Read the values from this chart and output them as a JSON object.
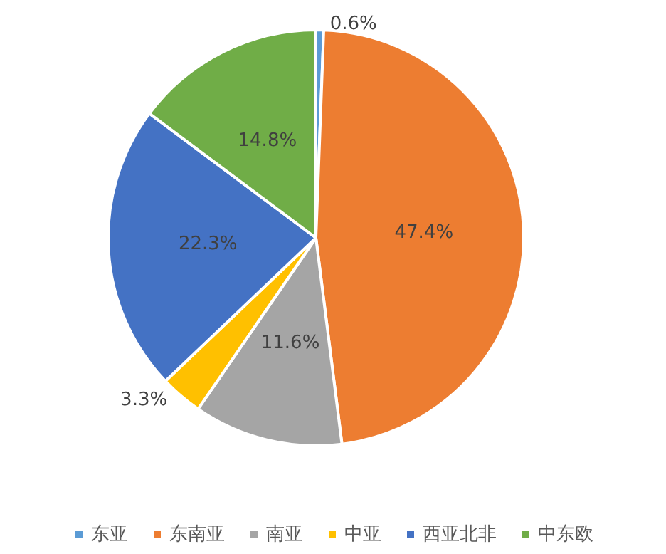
{
  "chart_data": {
    "type": "pie",
    "categories": [
      "东亚",
      "东南亚",
      "南亚",
      "中亚",
      "西亚北非",
      "中东欧"
    ],
    "values": [
      0.6,
      47.4,
      11.6,
      3.3,
      22.3,
      14.8
    ],
    "colors": [
      "#5b9bd5",
      "#ed7d31",
      "#a5a5a5",
      "#ffc000",
      "#4472c4",
      "#70ad47"
    ],
    "value_labels": [
      "0.6%",
      "47.4%",
      "11.6%",
      "3.3%",
      "22.3%",
      "14.8%"
    ],
    "legend": "bottom"
  }
}
